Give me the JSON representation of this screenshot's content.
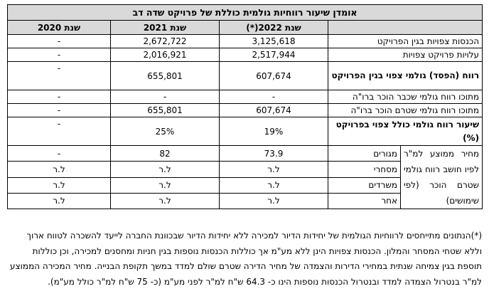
{
  "title": "אומדן שיעור רווחיות גולמית כוללת של פרויקט שדה דב",
  "headers": [
    "שנת 2022(*)",
    "שנת 2021",
    "שנת 2020"
  ],
  "rows": [
    {
      "label": "הכנסות צפויות בגין הפרויקט",
      "v2022": "3,125,618",
      "v2021": "2,672,722",
      "v2020": "-"
    },
    {
      "label": "עלויות פרויקט צפויות",
      "v2022": "2,517,944",
      "v2021": "2,016,921",
      "v2020": "-"
    },
    {
      "label": "רווח (הפסד) גולמי צפוי בגין הפרויקט",
      "v2022": "607,674",
      "v2021": "655,801",
      "v2020": "-"
    },
    {
      "label": "מתוכו רווח גולמי שכבר הוכר ברו\"ה",
      "v2022": "-",
      "v2021": "-",
      "v2020": "-"
    },
    {
      "label": "מתוכו רווח גולמי שטרם הוכר ברו\"ה",
      "v2022": "607,674",
      "v2021": "655,801",
      "v2020": "-"
    },
    {
      "label": "שיעור רווח גולמי כולל צפוי בפרויקט (%)",
      "v2022": "19%",
      "v2021": "25%",
      "v2020": "-"
    }
  ],
  "avg_price": {
    "label": "מחיר ממוצע למ\"ר לפיו חושב רווח גולמי שטרם הוכר (לפי שימושים)",
    "items": [
      {
        "use": "מגורים",
        "v2022": "73.9",
        "v2021": "82",
        "v2020": "-"
      },
      {
        "use": "מסחרי",
        "v2022": "ל.ר",
        "v2021": "ל.ר",
        "v2020": "ל.ר"
      },
      {
        "use": "משרדים",
        "v2022": "ל.ר",
        "v2021": "ל.ר",
        "v2020": "ל.ר"
      },
      {
        "use": "אחר",
        "v2022": "ל.ר",
        "v2021": "ל.ר",
        "v2020": "ל.ר"
      }
    ]
  },
  "footnote": "(*)הנתונים מתייחסים לרווחיות הגולמית של יחידות הדיור למכירה ללא יחידות הדיור שבכוונת החברה לייעד להשכרה לטווח ארוך וללא שטחי המסחר והמלון. הכנסות צפויות הינן ללא מע\"מ אך כוללות הכנסות נוספות בגין חניות ומחסנים למכירה, וכן כוללות תוספת בגין צמיחה שנתית במחירי הדירות והצמדה של מחיר הדירה שטרם שולם למדד במשך תקופת הבנייה. מחיר המכירה הממוצע למ\"ר בנטרול הצמדה למדד ובנטרול הכנסות נוספות הינו כ- 64.3 ש\"ח למ\"ר לפני מע\"מ (כ- 75 ש\"ח למ\"ר כולל מע\"מ)."
}
